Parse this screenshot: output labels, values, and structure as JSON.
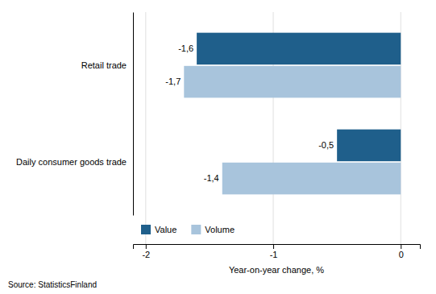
{
  "chart_data": {
    "type": "bar",
    "orientation": "horizontal",
    "categories": [
      "Daily consumer goods trade",
      "Retail trade"
    ],
    "series": [
      {
        "name": "Value",
        "color": "#1F5F8B",
        "values": [
          -0.5,
          -1.6
        ],
        "value_labels": [
          "-0,5",
          "-1,6"
        ]
      },
      {
        "name": "Volume",
        "color": "#A8C4DC",
        "values": [
          -1.4,
          -1.7
        ],
        "value_labels": [
          "-1,4",
          "-1,7"
        ]
      }
    ],
    "xlabel": "Year-on-year change, %",
    "xlim": [
      -2.1,
      0.15
    ],
    "xticks": [
      -2,
      -1,
      0
    ],
    "grid": true,
    "legend": "lower left",
    "data_labels": true,
    "source": "Source: StatisticsFinland"
  }
}
